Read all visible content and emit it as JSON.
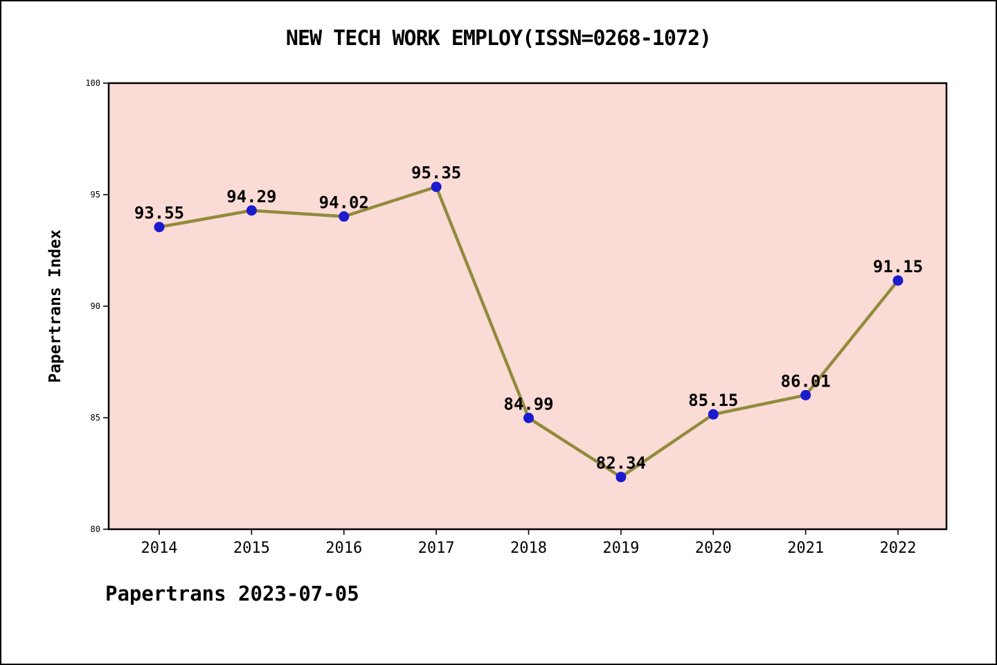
{
  "chart_data": {
    "type": "line",
    "title": "NEW TECH WORK EMPLOY(ISSN=0268-1072)",
    "categories": [
      "2014",
      "2015",
      "2016",
      "2017",
      "2018",
      "2019",
      "2020",
      "2021",
      "2022"
    ],
    "values": [
      93.55,
      94.29,
      94.02,
      95.35,
      84.99,
      82.34,
      85.15,
      86.01,
      91.15
    ],
    "point_labels": [
      "93.55",
      "94.29",
      "94.02",
      "95.35",
      "84.99",
      "82.34",
      "85.15",
      "86.01",
      "91.15"
    ],
    "xlabel": "",
    "ylabel": "Papertrans Index",
    "ylim": [
      80,
      100
    ],
    "yticks": [
      80,
      85,
      90,
      95,
      100
    ],
    "grid": false,
    "legend": false,
    "colors": {
      "plot_bg": "#fadbd5",
      "line": "#918b3c",
      "marker": "#1a1ace",
      "axis": "#000000",
      "text": "#000000"
    }
  },
  "footer": {
    "text": "Papertrans 2023-07-05"
  }
}
